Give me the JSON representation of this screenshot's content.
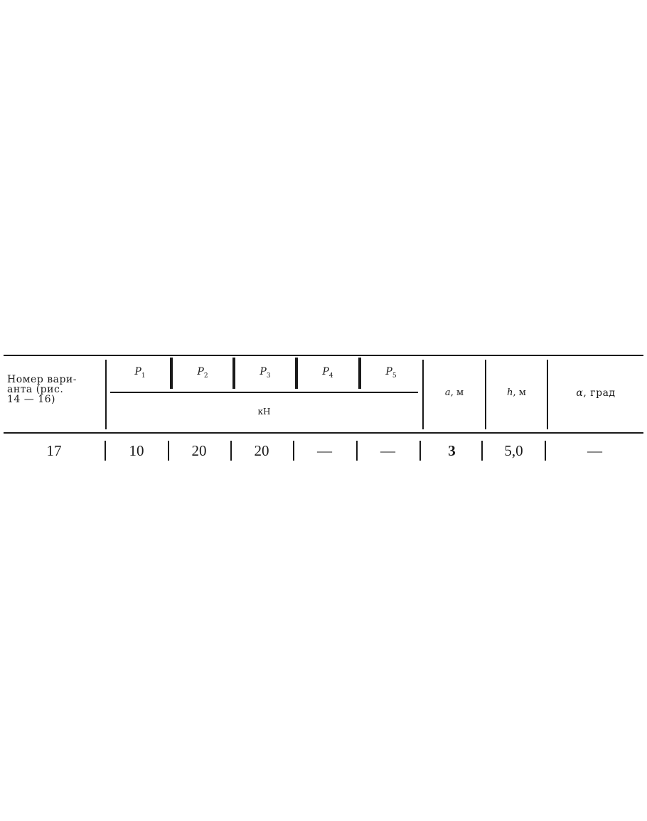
{
  "table": {
    "headers": {
      "variant": [
        "Номер вари-",
        "анта (рис.",
        "14 — 16)"
      ],
      "forces": [
        {
          "symbol": "P",
          "index": "1"
        },
        {
          "symbol": "P",
          "index": "2"
        },
        {
          "symbol": "P",
          "index": "3"
        },
        {
          "symbol": "P",
          "index": "4"
        },
        {
          "symbol": "P",
          "index": "5"
        }
      ],
      "force_unit": "кН",
      "a": {
        "symbol": "a",
        "unit": ", м"
      },
      "h": {
        "symbol": "h",
        "unit": ", м"
      },
      "alpha": {
        "symbol": "α",
        "unit": ", град"
      }
    },
    "rows": [
      {
        "variant": "17",
        "P1": "10",
        "P2": "20",
        "P3": "20",
        "P4": "—",
        "P5": "—",
        "a": "3",
        "h": "5,0",
        "alpha": "—"
      }
    ]
  }
}
